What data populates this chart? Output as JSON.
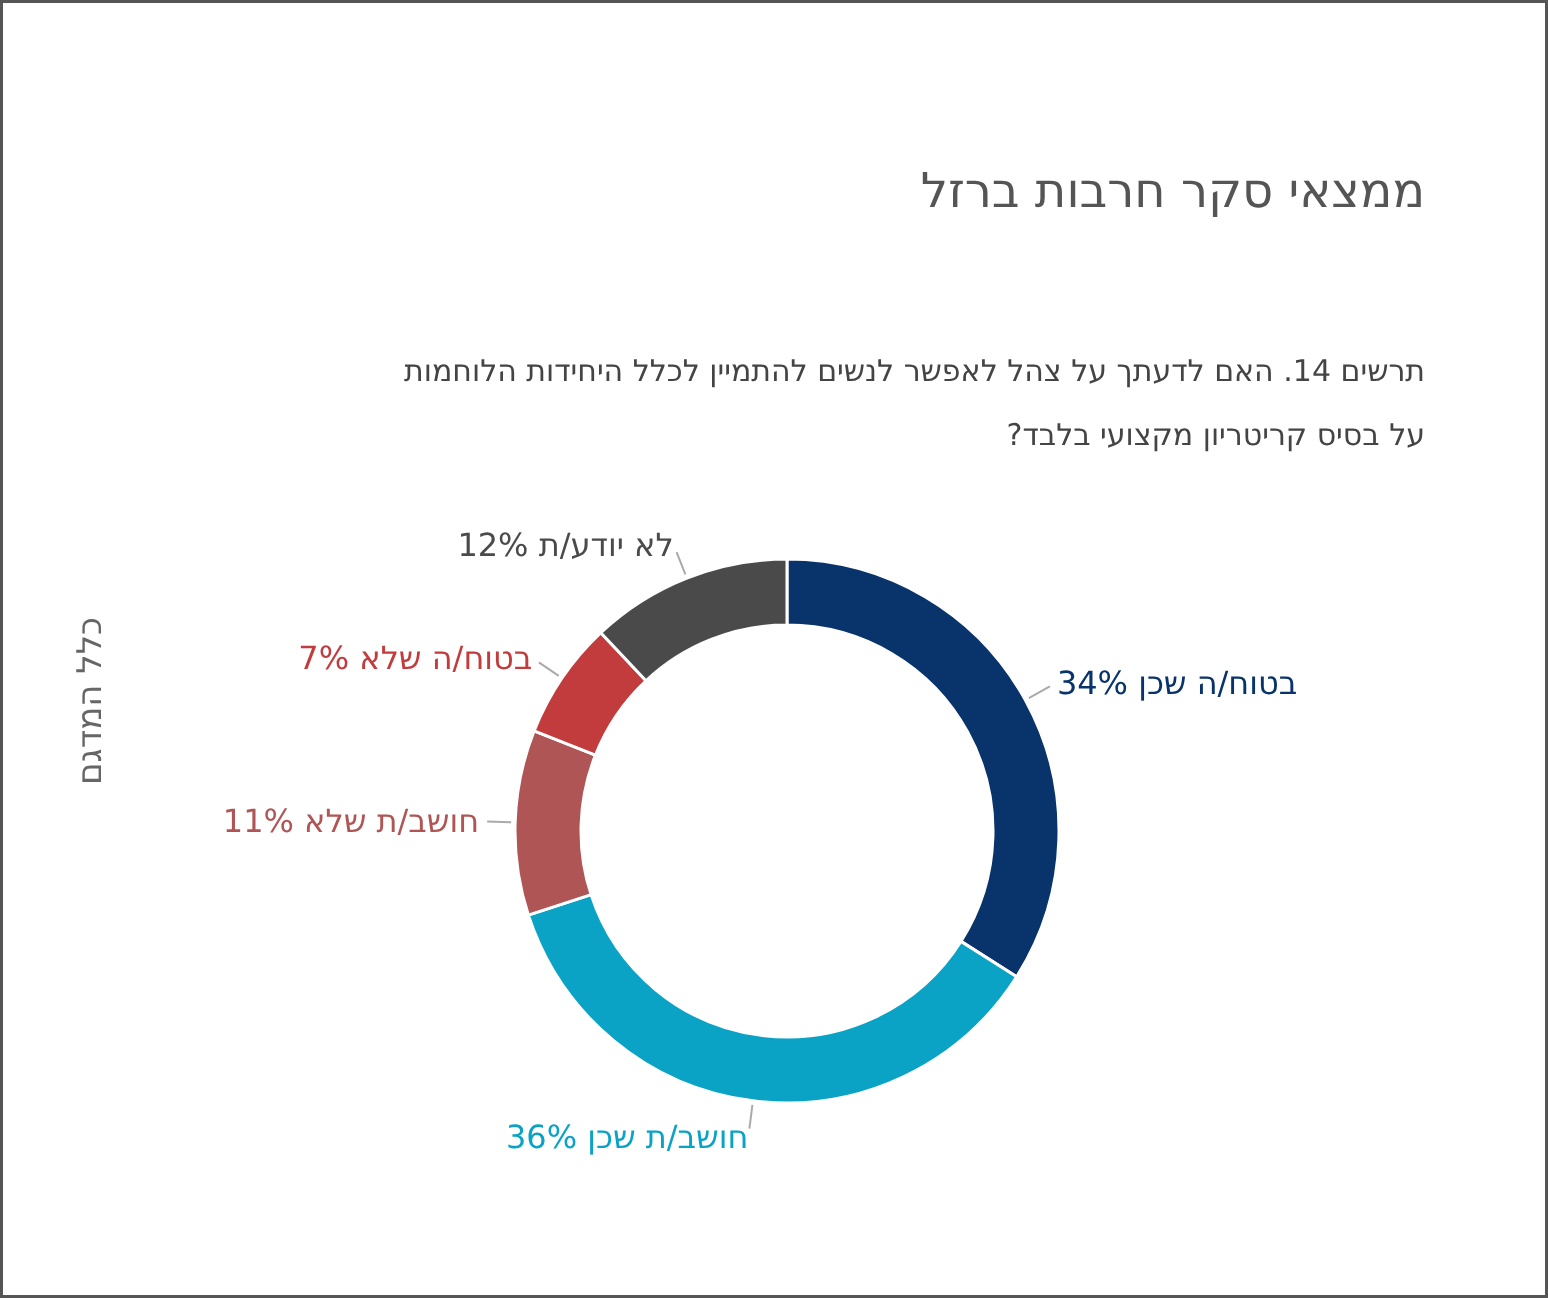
{
  "chart_data": {
    "type": "donut",
    "title": "ממצאי סקר חרבות ברזל",
    "subtitle": "תרשים 14. האם לדעתך על צהל לאפשר לנשים להתמיין לכלל היחידות הלוחמות\nעל בסיס קריטריון מקצועי בלבד?",
    "ylabel": "כלל המדגם",
    "categories": [
      "בטוח/ה שכן",
      "חושב/ת שכן",
      "חושב/ת שלא",
      "בטוח/ה שלא",
      "לא יודע/ת"
    ],
    "values": [
      34,
      36,
      11,
      7,
      12
    ],
    "value_labels": [
      "34%",
      "36%",
      "11%",
      "7%",
      "12%"
    ],
    "colors": [
      "#08336b",
      "#0aa3c6",
      "#b05555",
      "#c23b3d",
      "#4a4a4a"
    ]
  }
}
